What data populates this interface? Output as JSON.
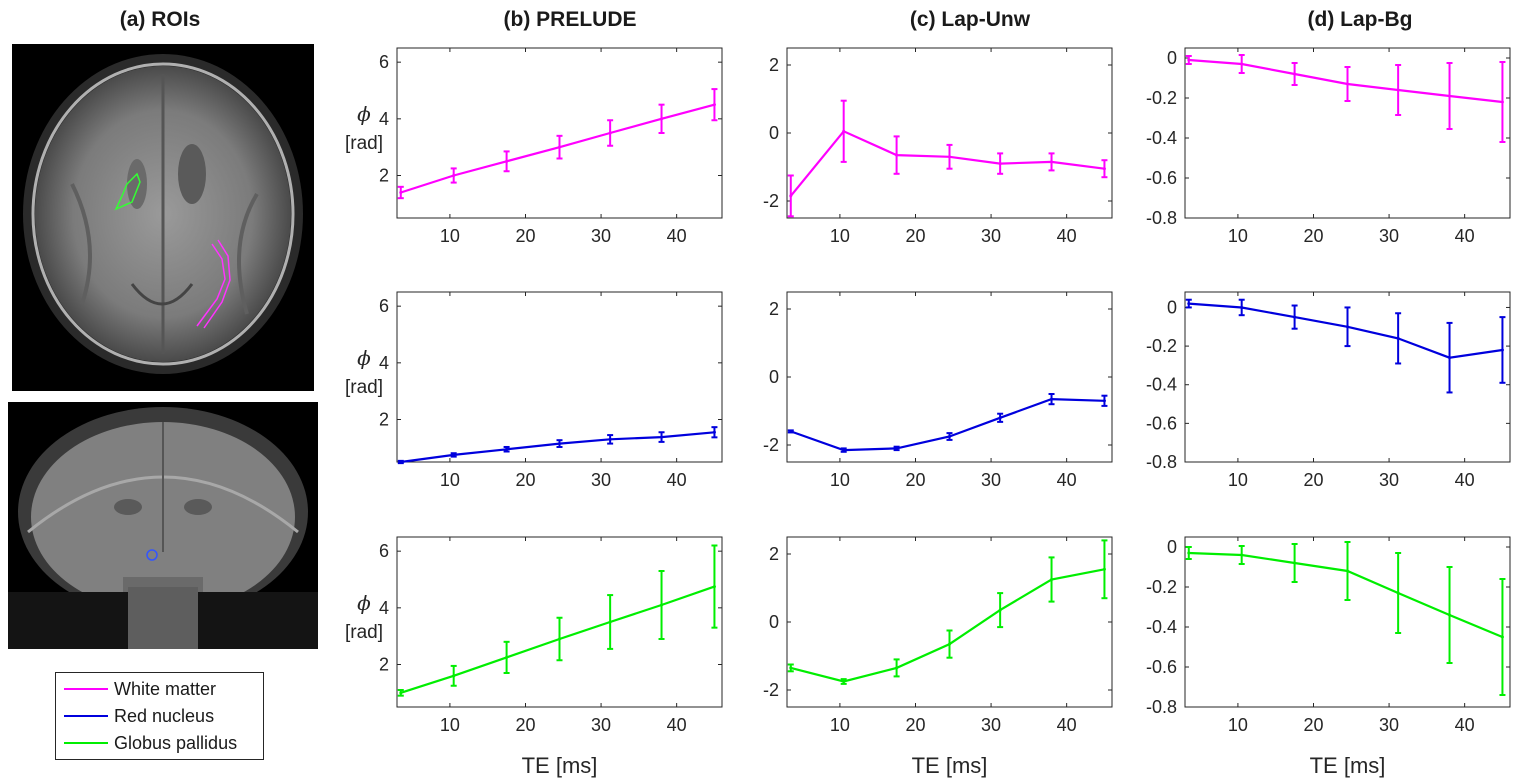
{
  "titles": {
    "a": "(a) ROIs",
    "b": "(b) PRELUDE",
    "c": "(c) Lap-Unw",
    "d": "(d) Lap-Bg"
  },
  "ylabel": {
    "symbol": "ϕ",
    "unit": "[rad]"
  },
  "xlabel": "TE [ms]",
  "legend": [
    {
      "label": "White matter",
      "color": "#ff00ff"
    },
    {
      "label": "Red nucleus",
      "color": "#0000dd"
    },
    {
      "label": "Globus pallidus",
      "color": "#00ee00"
    }
  ],
  "colors": {
    "white_matter": "#ff00ff",
    "red_nucleus": "#0000dd",
    "globus_pallidus": "#00ee00"
  },
  "chart_data": [
    {
      "type": "line",
      "panel": "(b) PRELUDE",
      "series_name": "White matter",
      "color": "#ff00ff",
      "x": [
        3.5,
        10.5,
        17.5,
        24.5,
        31.2,
        38.0,
        45.0
      ],
      "y": [
        1.4,
        2.0,
        2.5,
        3.0,
        3.5,
        4.0,
        4.5
      ],
      "err": [
        0.2,
        0.25,
        0.35,
        0.4,
        0.45,
        0.5,
        0.55
      ],
      "xlim": [
        3,
        46
      ],
      "ylim": [
        0.5,
        6.5
      ],
      "yticks": [
        2,
        4,
        6
      ],
      "xticks": [
        10,
        20,
        30,
        40
      ]
    },
    {
      "type": "line",
      "panel": "(c) Lap-Unw",
      "series_name": "White matter",
      "color": "#ff00ff",
      "x": [
        3.5,
        10.5,
        17.5,
        24.5,
        31.2,
        38.0,
        45.0
      ],
      "y": [
        -1.85,
        0.05,
        -0.65,
        -0.7,
        -0.9,
        -0.85,
        -1.05
      ],
      "err": [
        0.6,
        0.9,
        0.55,
        0.35,
        0.3,
        0.25,
        0.25
      ],
      "xlim": [
        3,
        46
      ],
      "ylim": [
        -2.5,
        2.5
      ],
      "yticks": [
        -2,
        0,
        2
      ],
      "xticks": [
        10,
        20,
        30,
        40
      ]
    },
    {
      "type": "line",
      "panel": "(d) Lap-Bg",
      "series_name": "White matter",
      "color": "#ff00ff",
      "x": [
        3.5,
        10.5,
        17.5,
        24.5,
        31.2,
        38.0,
        45.0
      ],
      "y": [
        -0.01,
        -0.03,
        -0.08,
        -0.13,
        -0.16,
        -0.19,
        -0.22
      ],
      "err": [
        0.02,
        0.045,
        0.055,
        0.085,
        0.125,
        0.165,
        0.2
      ],
      "xlim": [
        3,
        46
      ],
      "ylim": [
        -0.8,
        0.05
      ],
      "yticks": [
        0,
        -0.2,
        -0.4,
        -0.6,
        -0.8
      ],
      "xticks": [
        10,
        20,
        30,
        40
      ]
    },
    {
      "type": "line",
      "panel": "(b) PRELUDE",
      "series_name": "Red nucleus",
      "color": "#0000dd",
      "x": [
        3.5,
        10.5,
        17.5,
        24.5,
        31.2,
        38.0,
        45.0
      ],
      "y": [
        0.5,
        0.75,
        0.95,
        1.15,
        1.3,
        1.38,
        1.55
      ],
      "err": [
        0.04,
        0.06,
        0.08,
        0.12,
        0.15,
        0.17,
        0.18
      ],
      "xlim": [
        3,
        46
      ],
      "ylim": [
        0.5,
        6.5
      ],
      "yticks": [
        2,
        4,
        6
      ],
      "xticks": [
        10,
        20,
        30,
        40
      ]
    },
    {
      "type": "line",
      "panel": "(c) Lap-Unw",
      "series_name": "Red nucleus",
      "color": "#0000dd",
      "x": [
        3.5,
        10.5,
        17.5,
        24.5,
        31.2,
        38.0,
        45.0
      ],
      "y": [
        -1.6,
        -2.15,
        -2.1,
        -1.75,
        -1.2,
        -0.65,
        -0.7
      ],
      "err": [
        0.03,
        0.05,
        0.05,
        0.1,
        0.12,
        0.15,
        0.15
      ],
      "xlim": [
        3,
        46
      ],
      "ylim": [
        -2.5,
        2.5
      ],
      "yticks": [
        -2,
        0,
        2
      ],
      "xticks": [
        10,
        20,
        30,
        40
      ]
    },
    {
      "type": "line",
      "panel": "(d) Lap-Bg",
      "series_name": "Red nucleus",
      "color": "#0000dd",
      "x": [
        3.5,
        10.5,
        17.5,
        24.5,
        31.2,
        38.0,
        45.0
      ],
      "y": [
        0.02,
        0.0,
        -0.05,
        -0.1,
        -0.16,
        -0.26,
        -0.22
      ],
      "err": [
        0.02,
        0.04,
        0.06,
        0.1,
        0.13,
        0.18,
        0.17
      ],
      "xlim": [
        3,
        46
      ],
      "ylim": [
        -0.8,
        0.08
      ],
      "yticks": [
        0,
        -0.2,
        -0.4,
        -0.6,
        -0.8
      ],
      "xticks": [
        10,
        20,
        30,
        40
      ]
    },
    {
      "type": "line",
      "panel": "(b) PRELUDE",
      "series_name": "Globus pallidus",
      "color": "#00ee00",
      "x": [
        3.5,
        10.5,
        17.5,
        24.5,
        31.2,
        38.0,
        45.0
      ],
      "y": [
        1.0,
        1.6,
        2.25,
        2.9,
        3.5,
        4.1,
        4.75
      ],
      "err": [
        0.1,
        0.35,
        0.55,
        0.75,
        0.95,
        1.2,
        1.45
      ],
      "xlim": [
        3,
        46
      ],
      "ylim": [
        0.5,
        6.5
      ],
      "yticks": [
        2,
        4,
        6
      ],
      "xticks": [
        10,
        20,
        30,
        40
      ]
    },
    {
      "type": "line",
      "panel": "(c) Lap-Unw",
      "series_name": "Globus pallidus",
      "color": "#00ee00",
      "x": [
        3.5,
        10.5,
        17.5,
        24.5,
        31.2,
        38.0,
        45.0
      ],
      "y": [
        -1.35,
        -1.75,
        -1.35,
        -0.65,
        0.35,
        1.25,
        1.55
      ],
      "err": [
        0.1,
        0.07,
        0.25,
        0.4,
        0.5,
        0.65,
        0.85
      ],
      "xlim": [
        3,
        46
      ],
      "ylim": [
        -2.5,
        2.5
      ],
      "yticks": [
        -2,
        0,
        2
      ],
      "xticks": [
        10,
        20,
        30,
        40
      ]
    },
    {
      "type": "line",
      "panel": "(d) Lap-Bg",
      "series_name": "Globus pallidus",
      "color": "#00ee00",
      "x": [
        3.5,
        10.5,
        17.5,
        24.5,
        31.2,
        38.0,
        45.0
      ],
      "y": [
        -0.03,
        -0.04,
        -0.08,
        -0.12,
        -0.23,
        -0.34,
        -0.45
      ],
      "err": [
        0.03,
        0.045,
        0.095,
        0.145,
        0.2,
        0.24,
        0.29
      ],
      "xlim": [
        3,
        46
      ],
      "ylim": [
        -0.8,
        0.05
      ],
      "yticks": [
        0,
        -0.2,
        -0.4,
        -0.6,
        -0.8
      ],
      "xticks": [
        10,
        20,
        30,
        40
      ]
    }
  ]
}
